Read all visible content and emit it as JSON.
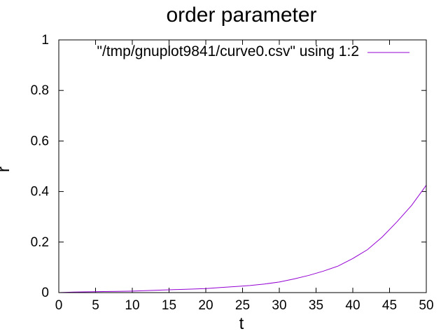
{
  "chart_data": {
    "type": "line",
    "title": "order parameter",
    "xlabel": "t",
    "ylabel": "r",
    "xlim": [
      0,
      50
    ],
    "ylim": [
      0,
      1
    ],
    "xticks": [
      0,
      5,
      10,
      15,
      20,
      25,
      30,
      35,
      40,
      45,
      50
    ],
    "yticks": [
      0,
      0.2,
      0.4,
      0.6,
      0.8,
      1
    ],
    "ytick_labels": [
      "0",
      "0.2",
      "0.4",
      "0.6",
      "0.8",
      "1"
    ],
    "grid": false,
    "legend_position": "top-right",
    "series": [
      {
        "name": "\"/tmp/gnuplot9841/curve0.csv\" using 1:2",
        "color": "#9400d3",
        "x": [
          0,
          2,
          4,
          6,
          8,
          10,
          12,
          14,
          16,
          18,
          20,
          22,
          24,
          26,
          28,
          30,
          32,
          34,
          36,
          38,
          40,
          42,
          44,
          46,
          48,
          50
        ],
        "y": [
          0.0,
          0.002,
          0.003,
          0.004,
          0.005,
          0.006,
          0.008,
          0.01,
          0.012,
          0.014,
          0.016,
          0.02,
          0.024,
          0.028,
          0.034,
          0.042,
          0.054,
          0.068,
          0.085,
          0.105,
          0.135,
          0.17,
          0.22,
          0.28,
          0.345,
          0.425
        ]
      }
    ]
  }
}
